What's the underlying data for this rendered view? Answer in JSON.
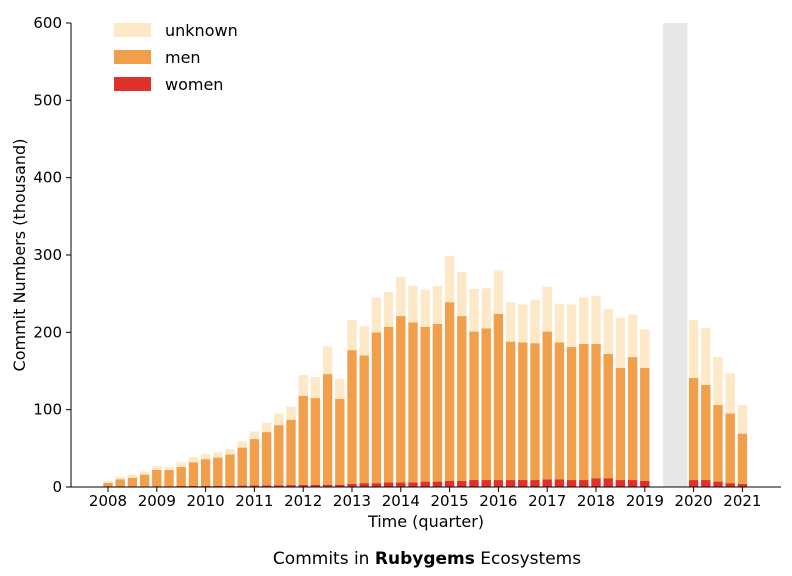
{
  "chart_data": {
    "type": "bar",
    "stacked": true,
    "caption": {
      "prefix": "Commits in ",
      "bold": "Rubygems",
      "suffix": " Ecosystems"
    },
    "xlabel": "Time (quarter)",
    "ylabel": "Commit Numbers (thousand)",
    "ylim": [
      0,
      600
    ],
    "yticks": [
      0,
      100,
      200,
      300,
      400,
      500,
      600
    ],
    "xticks": [
      {
        "label": "2008",
        "index": 0
      },
      {
        "label": "2009",
        "index": 4
      },
      {
        "label": "2010",
        "index": 8
      },
      {
        "label": "2011",
        "index": 12
      },
      {
        "label": "2012",
        "index": 16
      },
      {
        "label": "2013",
        "index": 20
      },
      {
        "label": "2014",
        "index": 24
      },
      {
        "label": "2015",
        "index": 28
      },
      {
        "label": "2016",
        "index": 32
      },
      {
        "label": "2017",
        "index": 36
      },
      {
        "label": "2018",
        "index": 40
      },
      {
        "label": "2019",
        "index": 44
      },
      {
        "label": "2020",
        "index": 48
      },
      {
        "label": "2021",
        "index": 52
      }
    ],
    "legend_position": "top-left",
    "grid": false,
    "excluded_region": {
      "from_index": 45.5,
      "to_index": 47.5,
      "color": "#e8e8e8"
    },
    "colors": {
      "unknown": "#fde8c8",
      "men": "#f29f4c",
      "women": "#e0302a"
    },
    "categories": [
      "2008 Q1",
      "2008 Q2",
      "2008 Q3",
      "2008 Q4",
      "2009 Q1",
      "2009 Q2",
      "2009 Q3",
      "2009 Q4",
      "2010 Q1",
      "2010 Q2",
      "2010 Q3",
      "2010 Q4",
      "2011 Q1",
      "2011 Q2",
      "2011 Q3",
      "2011 Q4",
      "2012 Q1",
      "2012 Q2",
      "2012 Q3",
      "2012 Q4",
      "2013 Q1",
      "2013 Q2",
      "2013 Q3",
      "2013 Q4",
      "2014 Q1",
      "2014 Q2",
      "2014 Q3",
      "2014 Q4",
      "2015 Q1",
      "2015 Q2",
      "2015 Q3",
      "2015 Q4",
      "2016 Q1",
      "2016 Q2",
      "2016 Q3",
      "2016 Q4",
      "2017 Q1",
      "2017 Q2",
      "2017 Q3",
      "2017 Q4",
      "2018 Q1",
      "2018 Q2",
      "2018 Q3",
      "2018 Q4",
      "2019 Q1",
      "2020 Q1",
      "2020 Q2",
      "2020 Q3",
      "2020 Q4",
      "2021 Q1"
    ],
    "x_index": [
      0,
      1,
      2,
      3,
      4,
      5,
      6,
      7,
      8,
      9,
      10,
      11,
      12,
      13,
      14,
      15,
      16,
      17,
      18,
      19,
      20,
      21,
      22,
      23,
      24,
      25,
      26,
      27,
      28,
      29,
      30,
      31,
      32,
      33,
      34,
      35,
      36,
      37,
      38,
      39,
      40,
      41,
      42,
      43,
      44,
      48,
      49,
      50,
      51,
      52
    ],
    "series": [
      {
        "name": "women",
        "values": [
          0.3,
          0.5,
          0.6,
          0.8,
          1,
          1,
          1.2,
          1.4,
          1.5,
          1.6,
          1.7,
          1.8,
          2,
          2,
          2.3,
          2.5,
          2.8,
          3,
          3,
          3,
          4,
          5,
          5,
          6,
          6,
          6,
          7,
          7,
          8,
          8,
          9,
          9,
          9,
          9,
          9,
          9,
          10,
          10,
          9,
          9,
          11,
          11,
          9,
          9,
          8,
          9,
          9,
          7,
          5,
          4
        ]
      },
      {
        "name": "men",
        "values": [
          5,
          9.5,
          11.4,
          15.2,
          21,
          21,
          24.8,
          30.6,
          34.5,
          36.4,
          40.3,
          49.2,
          60,
          69,
          77.7,
          84.5,
          115.2,
          112,
          143,
          111,
          173,
          165,
          195,
          201,
          215,
          207,
          200,
          204,
          231,
          213,
          192,
          196,
          215,
          179,
          178,
          177,
          191,
          177,
          172,
          176,
          174,
          161,
          145,
          159,
          146,
          132,
          123,
          99,
          90,
          65
        ]
      },
      {
        "name": "unknown",
        "values": [
          2.7,
          3,
          4,
          4,
          5,
          4,
          6,
          7,
          7,
          7,
          7,
          8,
          10,
          12,
          15,
          17,
          27,
          27,
          36,
          26,
          39,
          38,
          45,
          45,
          51,
          47,
          48,
          49,
          60,
          57,
          55,
          52,
          56,
          51,
          49,
          56,
          58,
          50,
          55,
          60,
          62,
          58,
          65,
          55,
          50,
          75,
          74,
          62,
          52,
          37
        ]
      }
    ]
  }
}
